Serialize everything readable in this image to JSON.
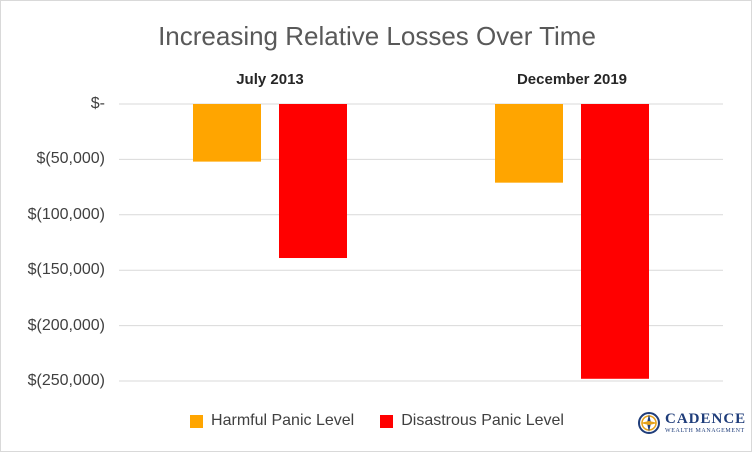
{
  "chart_data": {
    "type": "bar",
    "title": "Increasing Relative Losses Over Time",
    "categories": [
      "July 2013",
      "December 2019"
    ],
    "series": [
      {
        "name": "Harmful Panic Level",
        "color": "#FFA500",
        "values": [
          -52000,
          -71000
        ]
      },
      {
        "name": "Disastrous Panic Level",
        "color": "#FF0000",
        "values": [
          -139000,
          -248000
        ]
      }
    ],
    "ylim": [
      -250000,
      0
    ],
    "yticks": [
      {
        "value": 0,
        "label": "$-"
      },
      {
        "value": -50000,
        "label": "$(50,000)"
      },
      {
        "value": -100000,
        "label": "$(100,000)"
      },
      {
        "value": -150000,
        "label": "$(150,000)"
      },
      {
        "value": -200000,
        "label": "$(200,000)"
      },
      {
        "value": -250000,
        "label": "$(250,000)"
      }
    ],
    "category_axis_position": "top",
    "grid": true,
    "legend_position": "bottom"
  },
  "logo": {
    "name": "CADENCE",
    "subtitle": "WEALTH MANAGEMENT",
    "icon": "compass-icon"
  }
}
